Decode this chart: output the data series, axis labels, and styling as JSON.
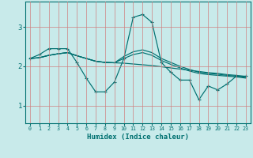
{
  "xlabel": "Humidex (Indice chaleur)",
  "line_color": "#007070",
  "bg_color": "#c8eaea",
  "grid_color": "#d08080",
  "xlim": [
    -0.5,
    23.5
  ],
  "ylim": [
    0.55,
    3.65
  ],
  "xticks": [
    0,
    1,
    2,
    3,
    4,
    5,
    6,
    7,
    8,
    9,
    10,
    11,
    12,
    13,
    14,
    15,
    16,
    17,
    18,
    19,
    20,
    21,
    22,
    23
  ],
  "yticks": [
    1,
    2,
    3
  ],
  "series_zigzag": [
    2.2,
    2.3,
    2.45,
    2.45,
    2.45,
    2.1,
    1.7,
    1.35,
    1.35,
    1.6,
    2.2,
    3.25,
    3.32,
    3.12,
    2.1,
    1.85,
    1.65,
    1.65,
    1.15,
    1.5,
    1.4,
    1.55,
    1.75,
    1.75
  ],
  "series_trend1": [
    2.2,
    2.22,
    2.28,
    2.32,
    2.35,
    2.27,
    2.2,
    2.13,
    2.1,
    2.09,
    2.08,
    2.06,
    2.04,
    2.02,
    1.99,
    1.96,
    1.93,
    1.9,
    1.87,
    1.84,
    1.82,
    1.79,
    1.77,
    1.74
  ],
  "series_trend2": [
    2.2,
    2.22,
    2.28,
    2.32,
    2.35,
    2.27,
    2.2,
    2.13,
    2.1,
    2.09,
    2.25,
    2.37,
    2.42,
    2.35,
    2.2,
    2.1,
    2.0,
    1.92,
    1.85,
    1.82,
    1.8,
    1.77,
    1.75,
    1.72
  ],
  "series_trend3": [
    2.2,
    2.22,
    2.28,
    2.32,
    2.35,
    2.27,
    2.2,
    2.13,
    2.1,
    2.09,
    2.2,
    2.3,
    2.35,
    2.28,
    2.15,
    2.05,
    1.96,
    1.88,
    1.82,
    1.79,
    1.77,
    1.75,
    1.73,
    1.7
  ]
}
